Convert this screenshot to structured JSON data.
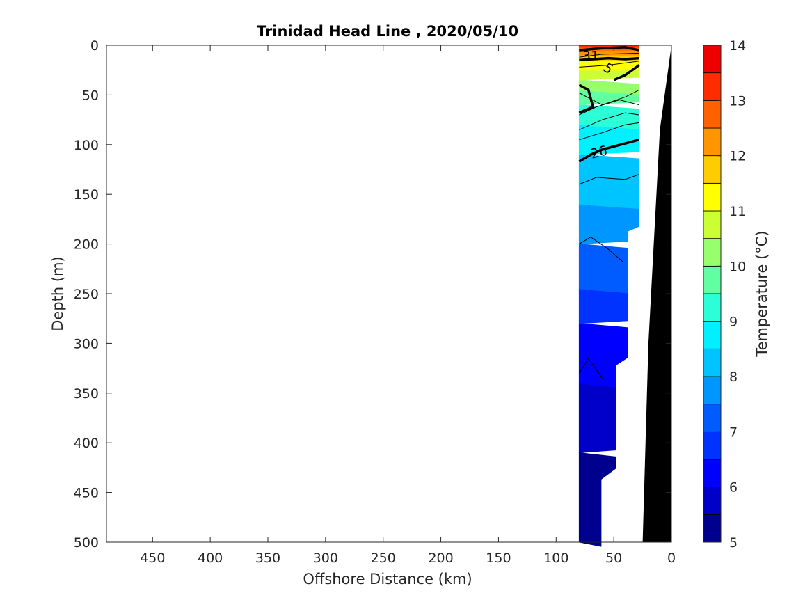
{
  "chart_data": {
    "type": "heatmap",
    "title": "Trinidad Head Line , 2020/05/10",
    "xlabel": "Offshore Distance (km)",
    "ylabel": "Depth (m)",
    "xlim": [
      490,
      0
    ],
    "ylim": [
      0,
      500
    ],
    "x_reversed": true,
    "y_reversed": true,
    "x_ticks": [
      450,
      400,
      350,
      300,
      250,
      200,
      150,
      100,
      50,
      0
    ],
    "y_ticks": [
      0,
      50,
      100,
      150,
      200,
      250,
      300,
      350,
      400,
      450,
      500
    ],
    "colorbar": {
      "label": "Temperature (°C)",
      "range": [
        5,
        14
      ],
      "ticks": [
        5,
        6,
        7,
        8,
        9,
        10,
        11,
        12,
        13,
        14
      ],
      "levels": [
        5,
        5.5,
        6,
        6.5,
        7,
        7.5,
        8,
        8.5,
        9,
        9.5,
        10,
        10.5,
        11,
        11.5,
        12,
        12.5,
        13,
        13.5,
        14
      ],
      "colors": [
        "#00008f",
        "#0000b8",
        "#0000e0",
        "#000aff",
        "#0033ff",
        "#005cff",
        "#0085ff",
        "#00adff",
        "#00d6ff",
        "#00ffff",
        "#29ffd6",
        "#52ffad",
        "#7aff85",
        "#a3ff5c",
        "#ccff33",
        "#f5ff0a",
        "#ffe000",
        "#ffb800",
        "#ff8f00",
        "#ff6600",
        "#ff3d00",
        "#ff1400",
        "#eb0000",
        "#c20000",
        "#990000"
      ],
      "band_colors": [
        "#00008f",
        "#0000c8",
        "#0000ff",
        "#0033ff",
        "#005cff",
        "#0096ff",
        "#00c4ff",
        "#00f0ff",
        "#2cffd8",
        "#62ffa2",
        "#98ff6c",
        "#ccff33",
        "#ffff00",
        "#ffcc00",
        "#ff9600",
        "#ff6000",
        "#ff2c00",
        "#ee0000",
        "#b40000"
      ]
    },
    "contour_labels": [
      "26",
      "5",
      "31"
    ],
    "section": {
      "x_offshore_km": 80,
      "x_inshore_km": 28,
      "max_sampling_depth_m": 500,
      "temperature_bands": [
        {
          "level": 5.0,
          "depth_range_m": [
            410,
            500
          ]
        },
        {
          "level": 5.5,
          "depth_range_m": [
            340,
            410
          ]
        },
        {
          "level": 6.0,
          "depth_range_m": [
            280,
            340
          ]
        },
        {
          "level": 6.5,
          "depth_range_m": [
            245,
            280
          ]
        },
        {
          "level": 7.0,
          "depth_range_m": [
            200,
            245
          ]
        },
        {
          "level": 7.5,
          "depth_range_m": [
            160,
            200
          ]
        },
        {
          "level": 8.0,
          "depth_range_m": [
            110,
            160
          ]
        },
        {
          "level": 8.5,
          "depth_range_m": [
            80,
            110
          ]
        },
        {
          "level": 9.0,
          "depth_range_m": [
            60,
            80
          ]
        },
        {
          "level": 9.5,
          "depth_range_m": [
            45,
            60
          ]
        },
        {
          "level": 10.0,
          "depth_range_m": [
            35,
            45
          ]
        },
        {
          "level": 10.5,
          "depth_range_m": [
            25,
            35
          ]
        },
        {
          "level": 11.0,
          "depth_range_m": [
            15,
            25
          ]
        },
        {
          "level": 11.5,
          "depth_range_m": [
            10,
            15
          ]
        },
        {
          "level": 12.0,
          "depth_range_m": [
            5,
            10
          ]
        },
        {
          "level": 12.5,
          "depth_range_m": [
            2,
            5
          ]
        },
        {
          "level": 13.0,
          "depth_range_m": [
            0,
            2
          ]
        }
      ]
    },
    "bathymetry": {
      "fill": "#000000",
      "seafloor": [
        {
          "x_km": 0,
          "depth_m": 0
        },
        {
          "x_km": 10,
          "depth_m": 85
        },
        {
          "x_km": 20,
          "depth_m": 300
        },
        {
          "x_km": 25,
          "depth_m": 500
        }
      ]
    }
  }
}
